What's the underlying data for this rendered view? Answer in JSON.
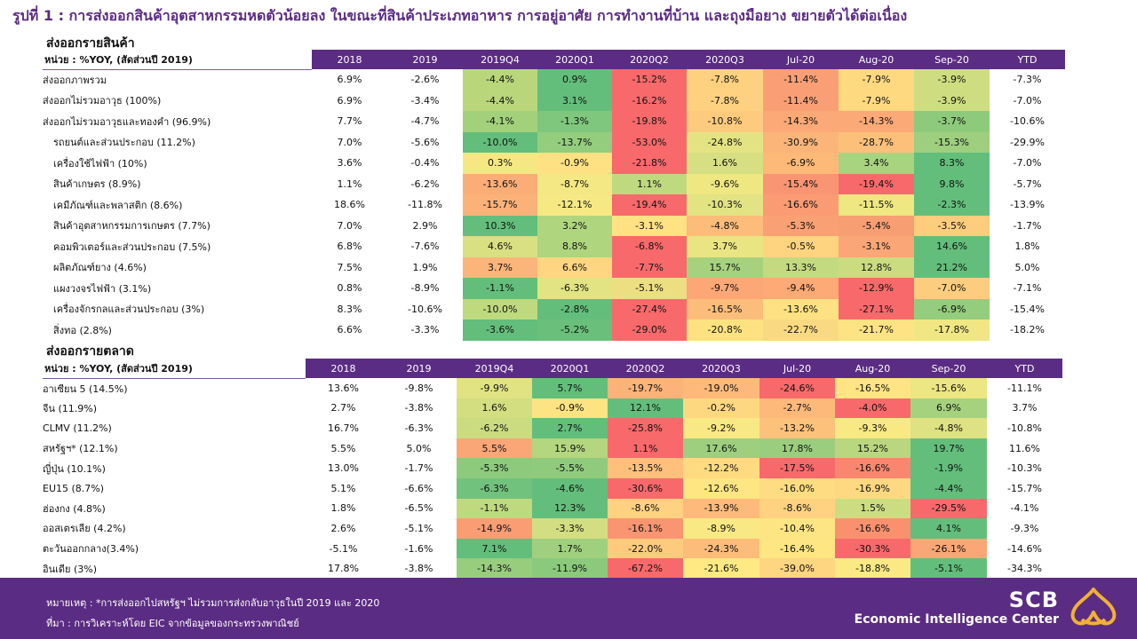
{
  "title": "รูปที่ 1 : การส่งออกสินค้าอุตสาหกรรมหดตัวน้อยลง ในขณะที่สินค้าประเภทอาหาร การอยู่อาศัย การทำงานที่บ้าน และถุงมือยาง ขยายตัวได้ต่อเนื่อง",
  "table1": {
    "section_title": "ส่งออกรายสินค้า",
    "unit_label": "หน่วย : %YOY, (สัดส่วนปี 2019)",
    "headers": [
      "2018",
      "2019",
      "2019Q4",
      "2020Q1",
      "2020Q2",
      "2020Q3",
      "Jul-20",
      "Aug-20",
      "Sep-20",
      "YTD"
    ],
    "rows": [
      {
        "label": "ส่งออกภาพรวม",
        "indent": 0,
        "values": [
          "6.9%",
          "-2.6%",
          "-4.4%",
          "0.9%",
          "-15.2%",
          "-7.8%",
          "-11.4%",
          "-7.9%",
          "-3.9%",
          "-7.3%"
        ],
        "colors": [
          "#b9d77a",
          "#63be7b",
          "#f8696b",
          "#fdd17f",
          "#fa9f75",
          "#fed980",
          "#cfdd81"
        ]
      },
      {
        "label": "ส่งออกไม่รวมอาวุธ (100%)",
        "indent": 0,
        "values": [
          "6.9%",
          "-3.4%",
          "-4.4%",
          "3.1%",
          "-16.2%",
          "-7.8%",
          "-11.4%",
          "-7.9%",
          "-3.9%",
          "-7.0%"
        ],
        "colors": [
          "#b9d77a",
          "#63be7b",
          "#f8696b",
          "#fdd17f",
          "#fa9f75",
          "#fed980",
          "#cfdd81"
        ]
      },
      {
        "label": "ส่งออกไม่รวมอาวุธและทองคำ (96.9%)",
        "indent": 0,
        "values": [
          "7.7%",
          "-4.7%",
          "-4.1%",
          "-1.3%",
          "-19.8%",
          "-10.8%",
          "-14.3%",
          "-14.3%",
          "-3.7%",
          "-10.6%"
        ],
        "colors": [
          "#a3d17b",
          "#7ec77c",
          "#f8696b",
          "#fecb7e",
          "#fbaa77",
          "#fbaa77",
          "#8dca7c"
        ]
      },
      {
        "label": "รถยนต์และส่วนประกอบ  (11.2%)",
        "indent": 1,
        "values": [
          "7.0%",
          "-5.6%",
          "-10.0%",
          "-13.7%",
          "-53.0%",
          "-24.8%",
          "-30.9%",
          "-28.7%",
          "-15.3%",
          "-29.9%"
        ],
        "colors": [
          "#63be7b",
          "#93cd7d",
          "#f8696b",
          "#e4e383",
          "#fbb579",
          "#fcc07b",
          "#9dcf7e"
        ]
      },
      {
        "label": "เครื่องใช้ไฟฟ้า  (10%)",
        "indent": 1,
        "values": [
          "3.6%",
          "-0.4%",
          "0.3%",
          "-0.9%",
          "-21.8%",
          "1.6%",
          "-6.9%",
          "3.4%",
          "8.3%",
          "-7.0%"
        ],
        "colors": [
          "#f5e883",
          "#fde183",
          "#f8696b",
          "#d6df82",
          "#fdb978",
          "#a8d37f",
          "#63be7b"
        ]
      },
      {
        "label": "สินค้าเกษตร  (8.9%)",
        "indent": 1,
        "values": [
          "1.1%",
          "-6.2%",
          "-13.6%",
          "-8.7%",
          "1.1%",
          "-9.6%",
          "-15.4%",
          "-19.4%",
          "9.8%",
          "-5.7%"
        ],
        "colors": [
          "#fbad77",
          "#f3e883",
          "#bfd97f",
          "#eee782",
          "#f99572",
          "#f8696b",
          "#63be7b"
        ]
      },
      {
        "label": "เคมีภัณฑ์และพลาสติก  (8.6%)",
        "indent": 1,
        "values": [
          "18.6%",
          "-11.8%",
          "-15.7%",
          "-12.1%",
          "-19.4%",
          "-10.3%",
          "-16.6%",
          "-11.5%",
          "-2.3%",
          "-13.9%"
        ],
        "colors": [
          "#fbb278",
          "#f6e984",
          "#f8696b",
          "#e2e383",
          "#fa9b73",
          "#eee782",
          "#63be7b"
        ]
      },
      {
        "label": "สินค้าอุตสาหกรรมการเกษตร  (7.7%)",
        "indent": 1,
        "values": [
          "7.0%",
          "2.9%",
          "10.3%",
          "3.2%",
          "-3.1%",
          "-4.8%",
          "-5.3%",
          "-5.4%",
          "-3.5%",
          "-1.7%"
        ],
        "colors": [
          "#63be7b",
          "#b0d57f",
          "#fee283",
          "#fcbc7a",
          "#f9a074",
          "#f89e73",
          "#fdcc7d"
        ]
      },
      {
        "label": "คอมพิวเตอร์และส่วนประกอบ  (7.5%)",
        "indent": 1,
        "values": [
          "6.8%",
          "-7.6%",
          "4.6%",
          "8.8%",
          "-6.8%",
          "3.7%",
          "-0.5%",
          "-3.1%",
          "14.6%",
          "1.8%"
        ],
        "colors": [
          "#d9e082",
          "#afd57f",
          "#f8696b",
          "#e9e583",
          "#fed480",
          "#fba676",
          "#63be7b"
        ]
      },
      {
        "label": "ผลิตภัณฑ์ยาง  (4.6%)",
        "indent": 1,
        "values": [
          "7.5%",
          "1.9%",
          "3.7%",
          "6.6%",
          "-7.7%",
          "15.7%",
          "13.3%",
          "12.8%",
          "21.2%",
          "5.0%"
        ],
        "colors": [
          "#fbb47a",
          "#fed681",
          "#f8696b",
          "#a6d27e",
          "#c4da80",
          "#cbdc80",
          "#63be7b"
        ]
      },
      {
        "label": "แผงวงจรไฟฟ้า  (3.1%)",
        "indent": 1,
        "values": [
          "0.8%",
          "-8.9%",
          "-1.1%",
          "-6.3%",
          "-5.1%",
          "-9.7%",
          "-9.4%",
          "-12.9%",
          "-7.0%",
          "-7.1%"
        ],
        "colors": [
          "#63be7b",
          "#e2e383",
          "#ecdf82",
          "#fca775",
          "#fdaa76",
          "#f8696b",
          "#fccd7f"
        ]
      },
      {
        "label": "เครื่องจักรกลและส่วนประกอบ  (3%)",
        "indent": 1,
        "values": [
          "8.3%",
          "-10.6%",
          "-10.0%",
          "-2.8%",
          "-27.4%",
          "-16.5%",
          "-13.6%",
          "-27.1%",
          "-6.9%",
          "-15.4%"
        ],
        "colors": [
          "#bfd97f",
          "#63be7b",
          "#f8696b",
          "#fcbd7b",
          "#fde183",
          "#f8696c",
          "#93cd7d"
        ]
      },
      {
        "label": "สิ่งทอ (2.8%)",
        "indent": 1,
        "values": [
          "6.6%",
          "-3.3%",
          "-3.6%",
          "-5.2%",
          "-29.0%",
          "-20.8%",
          "-22.7%",
          "-21.7%",
          "-17.8%",
          "-18.2%"
        ],
        "colors": [
          "#63be7b",
          "#6ac07b",
          "#f8696b",
          "#fee282",
          "#f9da82",
          "#fde383",
          "#f0e784"
        ]
      }
    ]
  },
  "table2": {
    "section_title": "ส่งออกรายตลาด",
    "unit_label": "หน่วย : %YOY, (สัดส่วนปี 2019)",
    "headers": [
      "2018",
      "2019",
      "2019Q4",
      "2020Q1",
      "2020Q2",
      "2020Q3",
      "Jul-20",
      "Aug-20",
      "Sep-20",
      "YTD"
    ],
    "rows": [
      {
        "label": "อาเซียน 5 (14.5%)",
        "values": [
          "13.6%",
          "-9.8%",
          "-9.9%",
          "5.7%",
          "-19.7%",
          "-19.0%",
          "-24.6%",
          "-16.5%",
          "-15.6%",
          "-11.1%"
        ],
        "colors": [
          "#e1e383",
          "#63be7b",
          "#fbb379",
          "#fcb97a",
          "#f8696b",
          "#fee482",
          "#ece683"
        ]
      },
      {
        "label": "จีน (11.9%)",
        "values": [
          "2.7%",
          "-3.8%",
          "1.6%",
          "-0.9%",
          "12.1%",
          "-0.2%",
          "-2.7%",
          "-4.0%",
          "6.9%",
          "3.7%"
        ],
        "colors": [
          "#d3de81",
          "#fee382",
          "#63be7b",
          "#fed881",
          "#fcb97a",
          "#f8696b",
          "#a6d27e"
        ]
      },
      {
        "label": "CLMV (11.2%)",
        "values": [
          "16.7%",
          "-6.3%",
          "-6.2%",
          "2.7%",
          "-25.8%",
          "-9.2%",
          "-13.2%",
          "-9.3%",
          "-4.8%",
          "-10.8%"
        ],
        "colors": [
          "#cbdc80",
          "#63be7b",
          "#f8696b",
          "#f9e984",
          "#fcc27c",
          "#f8e984",
          "#dee282"
        ]
      },
      {
        "label": "สหรัฐฯ* (12.1%)",
        "values": [
          "5.5%",
          "5.0%",
          "5.5%",
          "15.9%",
          "1.1%",
          "17.6%",
          "17.8%",
          "15.2%",
          "19.7%",
          "11.6%"
        ],
        "colors": [
          "#fba676",
          "#b3d67f",
          "#f8696b",
          "#9dcf7e",
          "#9ace7e",
          "#b9d77f",
          "#63be7b"
        ]
      },
      {
        "label": "ญี่ปุ่น (10.1%)",
        "values": [
          "13.0%",
          "-1.7%",
          "-5.3%",
          "-5.5%",
          "-13.5%",
          "-12.2%",
          "-17.5%",
          "-16.6%",
          "-1.9%",
          "-10.3%"
        ],
        "colors": [
          "#8dca7c",
          "#90cb7d",
          "#fec07b",
          "#feda81",
          "#f8696b",
          "#f9876f",
          "#63be7b"
        ]
      },
      {
        "label": "EU15 (8.7%)",
        "values": [
          "5.1%",
          "-6.6%",
          "-6.3%",
          "-4.6%",
          "-30.6%",
          "-12.6%",
          "-16.0%",
          "-16.9%",
          "-4.4%",
          "-15.7%"
        ],
        "colors": [
          "#71c27c",
          "#64be7b",
          "#f8696b",
          "#fee683",
          "#fedc81",
          "#fed981",
          "#63be7b"
        ]
      },
      {
        "label": "ฮ่องกง (4.8%)",
        "values": [
          "1.8%",
          "-6.5%",
          "-1.1%",
          "12.3%",
          "-8.6%",
          "-13.9%",
          "-8.6%",
          "1.5%",
          "-29.5%",
          "-4.1%"
        ],
        "colors": [
          "#bfd97f",
          "#63be7b",
          "#fed280",
          "#fdba7a",
          "#fed280",
          "#ccdd81",
          "#f8696b"
        ]
      },
      {
        "label": "ออสเตรเลีย (4.2%)",
        "values": [
          "2.6%",
          "-5.1%",
          "-14.9%",
          "-3.3%",
          "-16.1%",
          "-8.9%",
          "-10.4%",
          "-16.6%",
          "4.1%",
          "-9.3%"
        ],
        "colors": [
          "#fa9d74",
          "#d2de81",
          "#fa9571",
          "#f9e984",
          "#fee583",
          "#f9916f",
          "#63be7b"
        ]
      },
      {
        "label": "ตะวันออกกลาง(3.4%)",
        "values": [
          "-5.1%",
          "-1.6%",
          "7.1%",
          "1.7%",
          "-22.0%",
          "-24.3%",
          "-16.4%",
          "-30.3%",
          "-26.1%",
          "-14.6%"
        ],
        "colors": [
          "#63be7b",
          "#a0d07e",
          "#fdcb7d",
          "#fcbc7a",
          "#fee683",
          "#f8696b",
          "#fba676"
        ]
      },
      {
        "label": "อินเดีย (3%)",
        "values": [
          "17.8%",
          "-3.8%",
          "-14.3%",
          "-11.9%",
          "-67.2%",
          "-21.6%",
          "-39.0%",
          "-18.8%",
          "-5.1%",
          "-34.3%"
        ],
        "colors": [
          "#98cd7e",
          "#8bca7c",
          "#f8696b",
          "#fee983",
          "#fed580",
          "#fbe984",
          "#63be7b"
        ]
      }
    ]
  },
  "footer": {
    "note": "หมายเหตุ : *การส่งออกไปสหรัฐฯ ไม่รวมการส่งกลับอาวุธในปี 2019 และ 2020",
    "source": "ที่มา : การวิเคราะห์โดย EIC จากข้อมูลของกระทรวงพาณิชย์",
    "logo_scb": "SCB",
    "logo_eic": "Economic Intelligence Center"
  },
  "colors": {
    "brand_purple": "#5b2c83",
    "logo_gold": "#f2b134"
  }
}
